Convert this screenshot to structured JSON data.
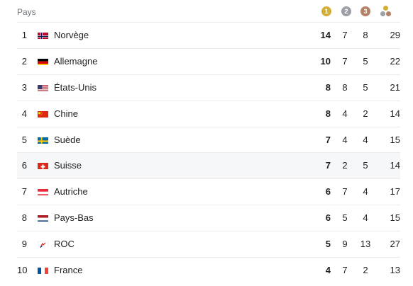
{
  "header": {
    "country_label": "Pays",
    "gold_icon_text": "1",
    "silver_icon_text": "2",
    "bronze_icon_text": "3",
    "colors": {
      "gold": "#d4af37",
      "silver": "#9aa0a6",
      "bronze": "#b3806a",
      "muted": "#70757a",
      "row_highlight": "#f6f7f8",
      "divider": "#ebebeb"
    }
  },
  "rows": [
    {
      "rank": "1",
      "country": "Norvège",
      "flag": "norway-flag",
      "gold": "14",
      "silver": "7",
      "bronze": "8",
      "total": "29"
    },
    {
      "rank": "2",
      "country": "Allemagne",
      "flag": "germany-flag",
      "gold": "10",
      "silver": "7",
      "bronze": "5",
      "total": "22"
    },
    {
      "rank": "3",
      "country": "États-Unis",
      "flag": "usa-flag",
      "gold": "8",
      "silver": "8",
      "bronze": "5",
      "total": "21"
    },
    {
      "rank": "4",
      "country": "Chine",
      "flag": "china-flag",
      "gold": "8",
      "silver": "4",
      "bronze": "2",
      "total": "14"
    },
    {
      "rank": "5",
      "country": "Suède",
      "flag": "sweden-flag",
      "gold": "7",
      "silver": "4",
      "bronze": "4",
      "total": "15"
    },
    {
      "rank": "6",
      "country": "Suisse",
      "flag": "switzerland-flag",
      "gold": "7",
      "silver": "2",
      "bronze": "5",
      "total": "14"
    },
    {
      "rank": "7",
      "country": "Autriche",
      "flag": "austria-flag",
      "gold": "6",
      "silver": "7",
      "bronze": "4",
      "total": "17"
    },
    {
      "rank": "8",
      "country": "Pays-Bas",
      "flag": "netherlands-flag",
      "gold": "6",
      "silver": "5",
      "bronze": "4",
      "total": "15"
    },
    {
      "rank": "9",
      "country": "ROC",
      "flag": "roc-flag",
      "gold": "5",
      "silver": "9",
      "bronze": "13",
      "total": "27"
    },
    {
      "rank": "10",
      "country": "France",
      "flag": "france-flag",
      "gold": "4",
      "silver": "7",
      "bronze": "2",
      "total": "13"
    }
  ],
  "highlighted_row": "6"
}
